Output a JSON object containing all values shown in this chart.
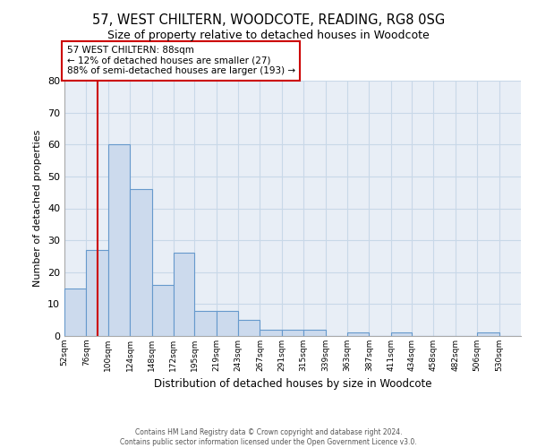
{
  "title": "57, WEST CHILTERN, WOODCOTE, READING, RG8 0SG",
  "subtitle": "Size of property relative to detached houses in Woodcote",
  "xlabel": "Distribution of detached houses by size in Woodcote",
  "ylabel": "Number of detached properties",
  "bar_heights": [
    15,
    27,
    60,
    46,
    16,
    26,
    8,
    8,
    5,
    2,
    2,
    2,
    0,
    1,
    0,
    1,
    0,
    0,
    0,
    1,
    0
  ],
  "bin_edges": [
    52,
    76,
    100,
    124,
    148,
    172,
    195,
    219,
    243,
    267,
    291,
    315,
    339,
    363,
    387,
    411,
    434,
    458,
    482,
    506,
    530,
    554
  ],
  "tick_labels": [
    "52sqm",
    "76sqm",
    "100sqm",
    "124sqm",
    "148sqm",
    "172sqm",
    "195sqm",
    "219sqm",
    "243sqm",
    "267sqm",
    "291sqm",
    "315sqm",
    "339sqm",
    "363sqm",
    "387sqm",
    "411sqm",
    "434sqm",
    "458sqm",
    "482sqm",
    "506sqm",
    "530sqm"
  ],
  "bar_color": "#ccdaed",
  "bar_edge_color": "#6699cc",
  "property_size": 88,
  "red_line_color": "#cc0000",
  "annotation_line1": "57 WEST CHILTERN: 88sqm",
  "annotation_line2": "← 12% of detached houses are smaller (27)",
  "annotation_line3": "88% of semi-detached houses are larger (193) →",
  "annotation_box_color": "#ffffff",
  "annotation_box_edge_color": "#cc0000",
  "ylim": [
    0,
    80
  ],
  "yticks": [
    0,
    10,
    20,
    30,
    40,
    50,
    60,
    70,
    80
  ],
  "grid_color": "#c8d8e8",
  "background_color": "#e8eef6",
  "footer_line1": "Contains HM Land Registry data © Crown copyright and database right 2024.",
  "footer_line2": "Contains public sector information licensed under the Open Government Licence v3.0.",
  "title_fontsize": 10.5,
  "subtitle_fontsize": 9
}
